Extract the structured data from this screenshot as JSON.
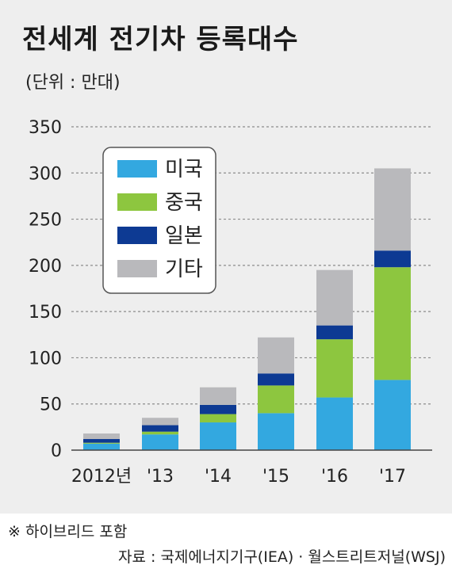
{
  "header": {
    "title": "전세계 전기차 등록대수",
    "unit": "(단위 : 만대)"
  },
  "footer": {
    "note": "※ 하이브리드 포함",
    "source": "자료 : 국제에너지기구(IEA) · 월스트리트저널(WSJ)"
  },
  "colors": {
    "미국": "#33a8e0",
    "중국": "#8dc63f",
    "일본": "#0d3a93",
    "기타": "#b9b9bc",
    "grid": "#8c8c8c",
    "background": "#eeeeee"
  },
  "chart_data": {
    "type": "bar",
    "stacked": true,
    "title": "전세계 전기차 등록대수",
    "subtitle": "(단위 : 만대)",
    "categories": [
      "2012년",
      "'13",
      "'14",
      "'15",
      "'16",
      "'17"
    ],
    "series": [
      {
        "name": "미국",
        "values": [
          7,
          17,
          30,
          40,
          57,
          76
        ]
      },
      {
        "name": "중국",
        "values": [
          1,
          3,
          9,
          30,
          63,
          122
        ]
      },
      {
        "name": "일본",
        "values": [
          4,
          7,
          10,
          13,
          15,
          18
        ]
      },
      {
        "name": "기타",
        "values": [
          6,
          8,
          19,
          39,
          60,
          89
        ]
      }
    ],
    "yticks": [
      0,
      50,
      100,
      150,
      200,
      250,
      300,
      350
    ],
    "ylim": [
      0,
      350
    ],
    "grid": true,
    "legend_position": "top-left"
  }
}
